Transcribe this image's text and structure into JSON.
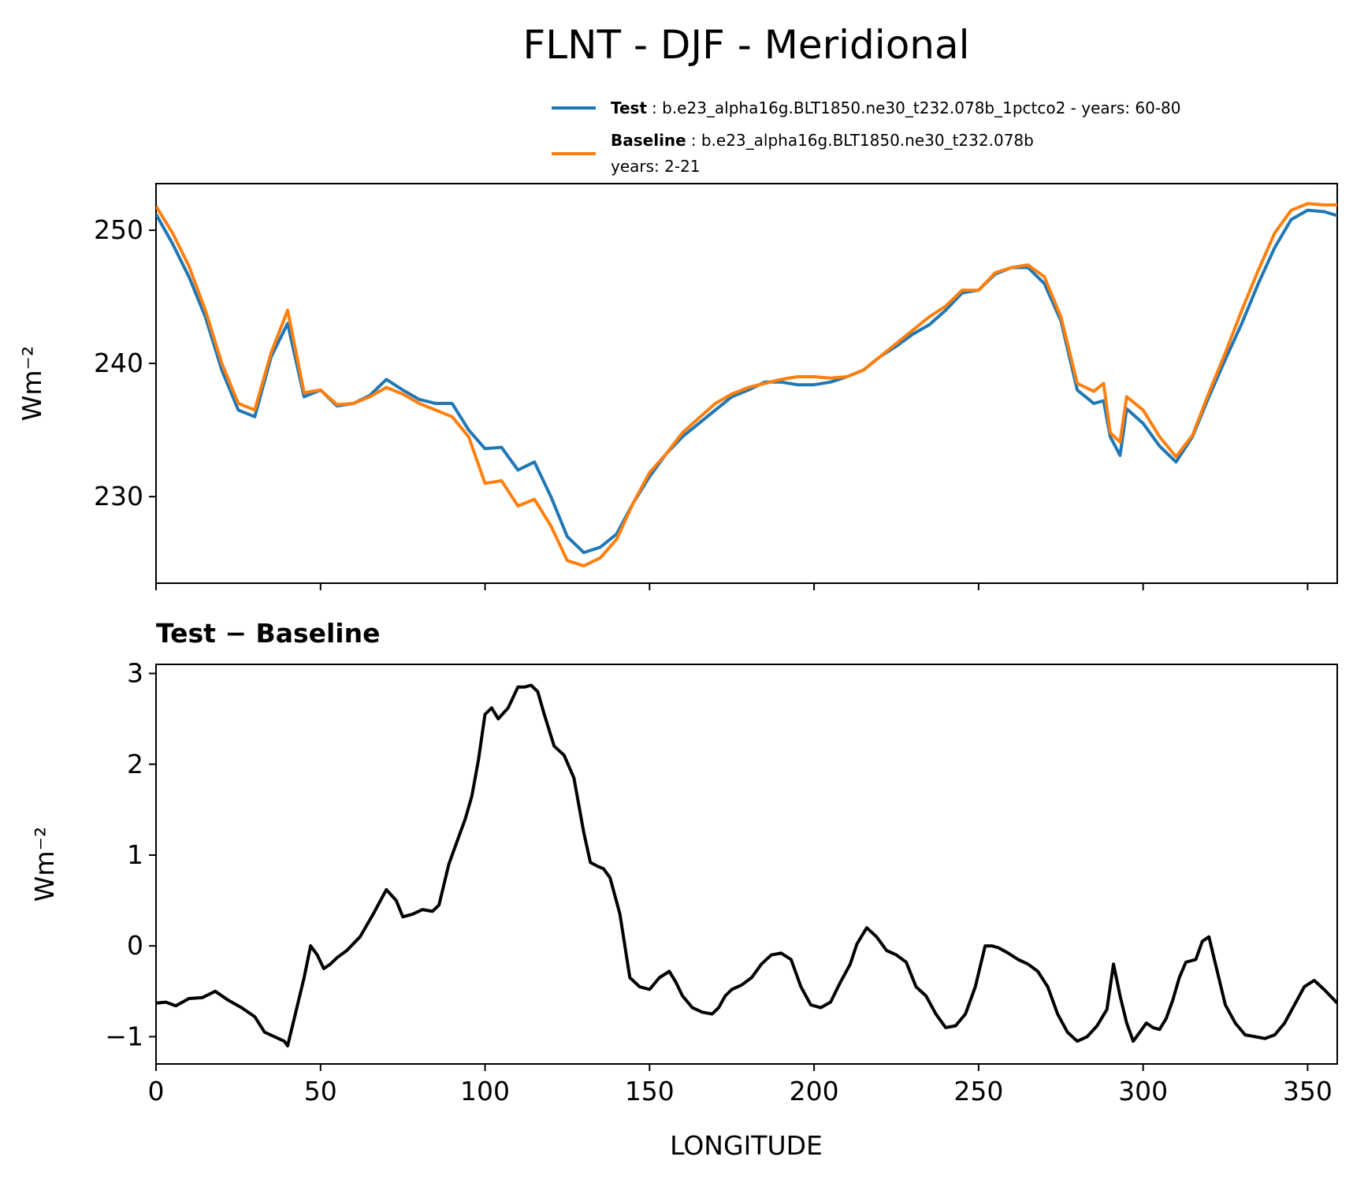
{
  "figure": {
    "title": "FLNT - DJF - Meridional",
    "xlabel": "LONGITUDE"
  },
  "legend": {
    "test_label": "Test",
    "test_text": ": b.e23_alpha16g.BLT1850.ne30_t232.078b_1pctco2 - years: 60-80",
    "baseline_label": "Baseline",
    "baseline_text": ": b.e23_alpha16g.BLT1850.ne30_t232.078b",
    "baseline_years": "years: 2-21"
  },
  "colors": {
    "test": "#1f77b4",
    "baseline": "#ff7f0e",
    "diff": "#000000"
  },
  "chart_data": [
    {
      "type": "line",
      "ylabel": "Wm⁻²",
      "xlim": [
        0,
        359
      ],
      "ylim": [
        223.5,
        253.5
      ],
      "x_ticks": [
        0,
        50,
        100,
        150,
        200,
        250,
        300,
        350
      ],
      "y_ticks": [
        230,
        240,
        250
      ],
      "legend_position": "above-right",
      "series": [
        {
          "name": "Test",
          "x": [
            0,
            5,
            10,
            15,
            20,
            25,
            30,
            35,
            40,
            45,
            50,
            55,
            60,
            65,
            70,
            75,
            80,
            85,
            90,
            95,
            100,
            105,
            110,
            115,
            120,
            125,
            130,
            135,
            140,
            145,
            150,
            155,
            160,
            165,
            170,
            175,
            180,
            185,
            190,
            195,
            200,
            205,
            210,
            215,
            220,
            225,
            230,
            235,
            240,
            245,
            250,
            255,
            260,
            265,
            270,
            275,
            280,
            285,
            288,
            290,
            293,
            295,
            300,
            305,
            310,
            315,
            320,
            325,
            330,
            335,
            340,
            345,
            350,
            355,
            359
          ],
          "values": [
            251.2,
            249,
            246.5,
            243.5,
            239.5,
            236.5,
            236,
            240.5,
            243,
            237.5,
            238,
            236.8,
            237,
            237.6,
            238.8,
            238,
            237.3,
            237,
            237,
            235,
            233.6,
            233.7,
            232,
            232.6,
            230,
            227,
            225.8,
            226.2,
            227.2,
            229.5,
            231.5,
            233.2,
            234.5,
            235.5,
            236.5,
            237.5,
            238,
            238.6,
            238.6,
            238.4,
            238.4,
            238.6,
            239,
            239.5,
            240.5,
            241.3,
            242.2,
            242.9,
            244,
            245.3,
            245.5,
            246.7,
            247.2,
            247.2,
            246,
            243.2,
            238,
            237,
            237.2,
            234.5,
            233.1,
            236.6,
            235.5,
            233.8,
            232.6,
            234.5,
            237.5,
            240.3,
            243,
            246,
            248.7,
            250.8,
            251.5,
            251.4,
            251.1
          ]
        },
        {
          "name": "Baseline",
          "x": [
            0,
            5,
            10,
            15,
            20,
            25,
            30,
            35,
            40,
            45,
            50,
            55,
            60,
            65,
            70,
            75,
            80,
            85,
            90,
            95,
            100,
            105,
            110,
            115,
            120,
            125,
            130,
            135,
            140,
            145,
            150,
            155,
            160,
            165,
            170,
            175,
            180,
            185,
            190,
            195,
            200,
            205,
            210,
            215,
            220,
            225,
            230,
            235,
            240,
            245,
            250,
            255,
            260,
            265,
            270,
            275,
            280,
            285,
            288,
            290,
            293,
            295,
            300,
            305,
            310,
            315,
            320,
            325,
            330,
            335,
            340,
            345,
            350,
            355,
            359
          ],
          "values": [
            251.8,
            249.8,
            247.3,
            244,
            240,
            237,
            236.5,
            240.8,
            244,
            237.8,
            238,
            236.9,
            237,
            237.5,
            238.2,
            237.7,
            237,
            236.5,
            236,
            234.5,
            231,
            231.2,
            229.3,
            229.8,
            227.8,
            225.2,
            224.8,
            225.4,
            226.8,
            229.5,
            231.8,
            233.2,
            234.8,
            235.9,
            237,
            237.7,
            238.2,
            238.5,
            238.8,
            239,
            239,
            238.9,
            239,
            239.5,
            240.5,
            241.5,
            242.5,
            243.5,
            244.3,
            245.5,
            245.5,
            246.8,
            247.2,
            247.4,
            246.5,
            243.5,
            238.5,
            237.9,
            238.5,
            234.8,
            234.1,
            237.5,
            236.5,
            234.5,
            233,
            234.6,
            237.8,
            240.8,
            244,
            247,
            249.8,
            251.5,
            252,
            251.9,
            251.9
          ]
        }
      ]
    },
    {
      "type": "line",
      "title": "Test − Baseline",
      "ylabel": "Wm⁻²",
      "xlabel": "LONGITUDE",
      "xlim": [
        0,
        359
      ],
      "ylim": [
        -1.3,
        3.1
      ],
      "x_ticks": [
        0,
        50,
        100,
        150,
        200,
        250,
        300,
        350
      ],
      "y_ticks": [
        -1,
        0,
        1,
        2,
        3
      ],
      "series": [
        {
          "name": "Test − Baseline",
          "x": [
            0,
            3,
            6,
            10,
            14,
            18,
            22,
            26,
            30,
            33,
            36,
            39,
            40,
            42,
            45,
            47,
            49,
            51,
            53,
            55,
            58,
            62,
            66,
            70,
            73,
            75,
            78,
            81,
            84,
            86,
            89,
            92,
            94,
            96,
            98,
            100,
            102,
            104,
            107,
            110,
            112,
            114,
            116,
            118,
            121,
            124,
            127,
            130,
            132,
            134,
            136,
            138,
            141,
            144,
            147,
            150,
            153,
            156,
            158,
            160,
            163,
            166,
            169,
            171,
            173,
            175,
            178,
            181,
            184,
            187,
            190,
            193,
            196,
            199,
            202,
            205,
            208,
            211,
            213,
            216,
            219,
            222,
            225,
            228,
            231,
            234,
            237,
            240,
            243,
            246,
            249,
            252,
            254,
            256,
            259,
            262,
            265,
            268,
            271,
            274,
            277,
            280,
            283,
            286,
            289,
            291,
            293,
            295,
            297,
            299,
            301,
            303,
            305,
            307,
            309,
            311,
            313,
            316,
            318,
            320,
            322,
            325,
            328,
            331,
            334,
            337,
            340,
            343,
            346,
            349,
            352,
            355,
            359
          ],
          "values": [
            -0.63,
            -0.62,
            -0.66,
            -0.58,
            -0.57,
            -0.5,
            -0.6,
            -0.68,
            -0.78,
            -0.95,
            -1.0,
            -1.05,
            -1.1,
            -0.8,
            -0.35,
            0.0,
            -0.1,
            -0.25,
            -0.2,
            -0.13,
            -0.05,
            0.1,
            0.35,
            0.62,
            0.5,
            0.32,
            0.35,
            0.4,
            0.38,
            0.45,
            0.9,
            1.2,
            1.4,
            1.65,
            2.05,
            2.55,
            2.62,
            2.5,
            2.62,
            2.85,
            2.85,
            2.87,
            2.8,
            2.55,
            2.2,
            2.1,
            1.85,
            1.25,
            0.92,
            0.88,
            0.85,
            0.75,
            0.35,
            -0.35,
            -0.45,
            -0.48,
            -0.35,
            -0.28,
            -0.4,
            -0.55,
            -0.68,
            -0.73,
            -0.75,
            -0.68,
            -0.55,
            -0.48,
            -0.43,
            -0.35,
            -0.2,
            -0.1,
            -0.08,
            -0.15,
            -0.45,
            -0.65,
            -0.68,
            -0.62,
            -0.4,
            -0.2,
            0.02,
            0.2,
            0.1,
            -0.05,
            -0.1,
            -0.18,
            -0.45,
            -0.55,
            -0.75,
            -0.9,
            -0.88,
            -0.75,
            -0.45,
            0.0,
            0.0,
            -0.02,
            -0.08,
            -0.15,
            -0.2,
            -0.28,
            -0.45,
            -0.75,
            -0.95,
            -1.05,
            -1.0,
            -0.88,
            -0.7,
            -0.2,
            -0.55,
            -0.85,
            -1.05,
            -0.95,
            -0.85,
            -0.9,
            -0.92,
            -0.8,
            -0.6,
            -0.35,
            -0.18,
            -0.15,
            0.05,
            0.1,
            -0.2,
            -0.65,
            -0.85,
            -0.98,
            -1.0,
            -1.02,
            -0.98,
            -0.85,
            -0.65,
            -0.45,
            -0.38,
            -0.48,
            -0.63
          ]
        }
      ]
    }
  ]
}
